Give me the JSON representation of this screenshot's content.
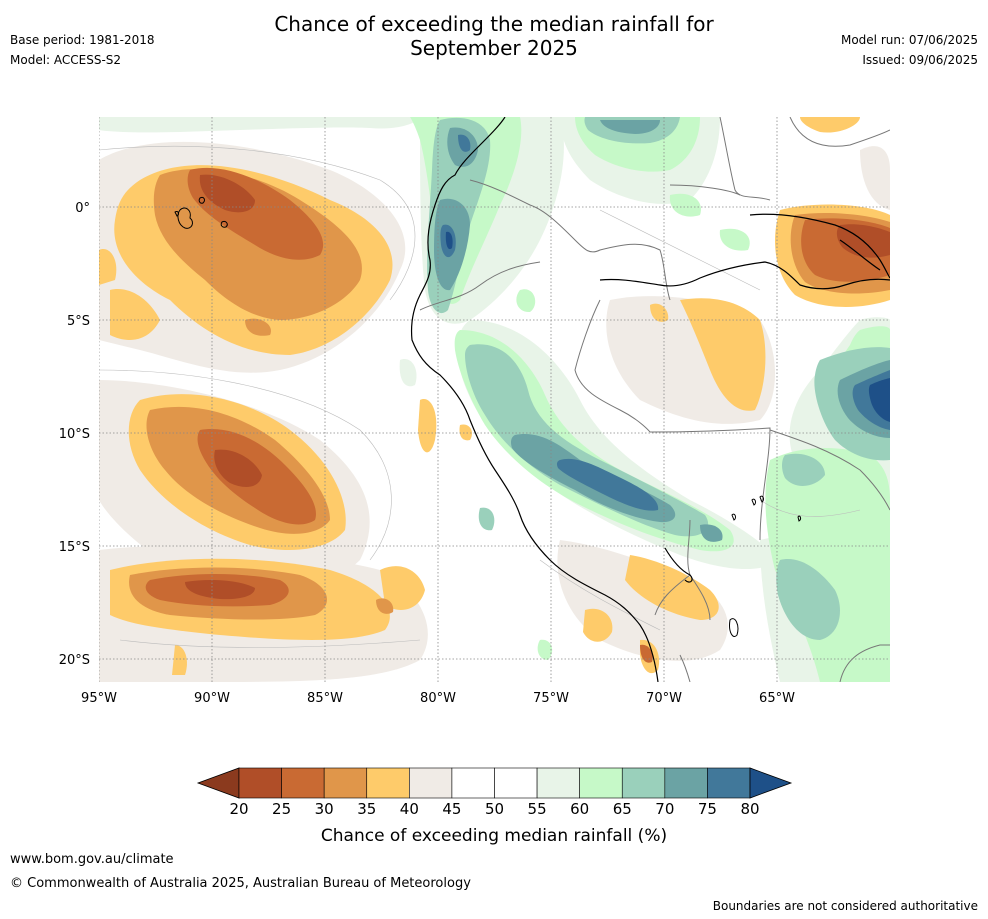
{
  "header": {
    "title_line1": "Chance of exceeding the median rainfall for",
    "title_line2": "September 2025",
    "base_period": "Base period: 1981-2018",
    "model": "Model: ACCESS-S2",
    "model_run": "Model run: 07/06/2025",
    "issued": "Issued: 09/06/2025"
  },
  "map": {
    "lat_labels": [
      "0°",
      "5°S",
      "10°S",
      "15°S",
      "20°S"
    ],
    "lat_values": [
      0,
      -5,
      -10,
      -15,
      -20
    ],
    "lon_labels": [
      "95°W",
      "90°W",
      "85°W",
      "80°W",
      "75°W",
      "70°W",
      "65°W"
    ],
    "lon_values": [
      -95,
      -90,
      -85,
      -80,
      -75,
      -70,
      -65
    ],
    "lon_range": [
      -95,
      -60
    ],
    "lat_range": [
      -21,
      4
    ]
  },
  "colorbar": {
    "ticks": [
      "20",
      "25",
      "30",
      "35",
      "40",
      "45",
      "50",
      "55",
      "60",
      "65",
      "70",
      "75",
      "80"
    ],
    "colors": [
      "#8b3a1e",
      "#b04e28",
      "#c96a33",
      "#e0964a",
      "#fecb6a",
      "#f0ebe6",
      "#ffffff",
      "#ffffff",
      "#e8f4e8",
      "#c6f9c8",
      "#9ad0bb",
      "#6ba3a4",
      "#41789a",
      "#1e5088"
    ],
    "label": "Chance of exceeding median rainfall (%)"
  },
  "footer": {
    "url": "www.bom.gov.au/climate",
    "copyright": "© Commonwealth of Australia 2025, Australian Bureau of Meteorology",
    "note": "Boundaries are not considered authoritative"
  }
}
